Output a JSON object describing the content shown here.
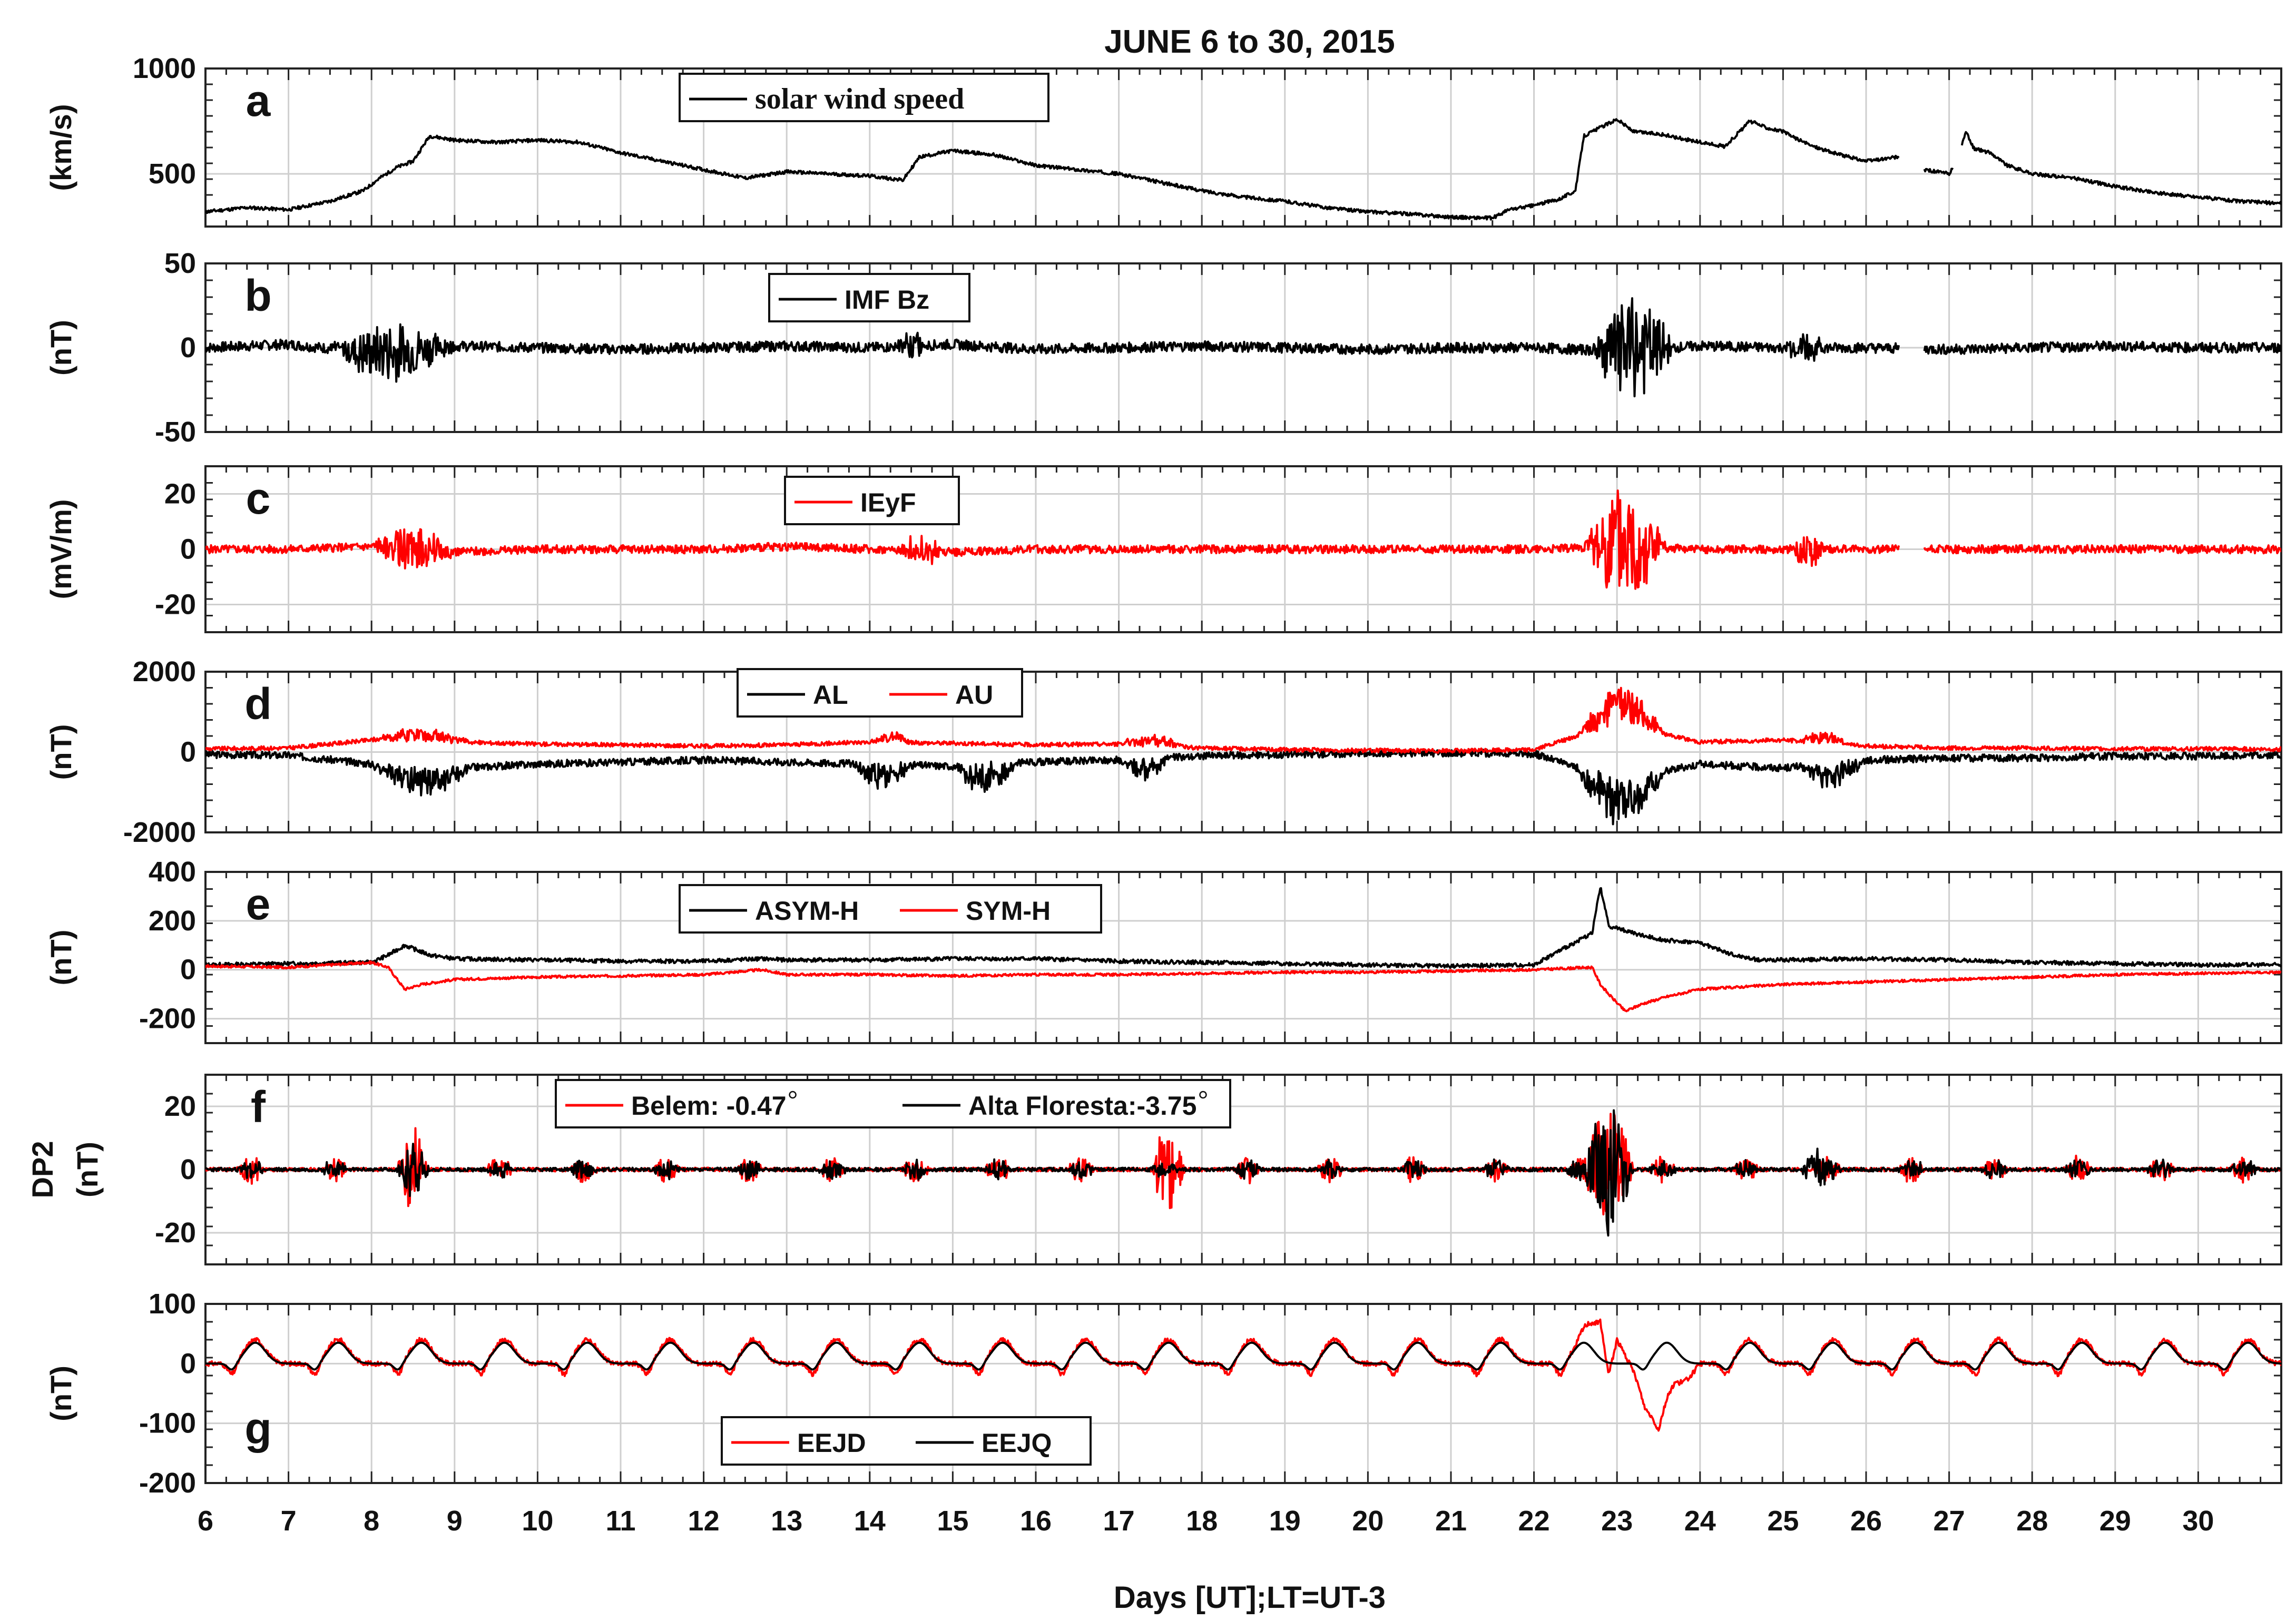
{
  "figure": {
    "title": "JUNE 6 to 30, 2015",
    "xlabel": "Days [UT];LT=UT-3"
  },
  "colors": {
    "black": "#000000",
    "red": "#ff0000",
    "grid": "#cfcfcf",
    "frame": "#222222"
  },
  "chart_data": [
    {
      "panel": "a",
      "type": "line",
      "ylabel": "(km/s)",
      "x_range": [
        6,
        31
      ],
      "x_ticks": [
        6,
        7,
        8,
        9,
        10,
        11,
        12,
        13,
        14,
        15,
        16,
        17,
        18,
        19,
        20,
        21,
        22,
        23,
        24,
        25,
        26,
        27,
        28,
        29,
        30
      ],
      "ylim": [
        250,
        1000
      ],
      "y_ticks": [
        500,
        1000
      ],
      "legend": [
        "solar wind speed"
      ],
      "legend_font": "serif",
      "series": [
        {
          "name": "solar wind speed",
          "color": "#000000",
          "noise": 8,
          "seed": 11,
          "gaps": [
            [
              26.4,
              26.7
            ],
            [
              27.05,
              27.15
            ]
          ],
          "x": [
            6,
            6.5,
            7,
            7.5,
            7.9,
            8.1,
            8.3,
            8.5,
            8.7,
            9,
            9.5,
            10,
            10.5,
            11,
            11.5,
            12,
            12.5,
            13,
            13.5,
            14,
            14.4,
            14.6,
            15,
            15.5,
            16,
            16.5,
            17,
            17.5,
            18,
            18.5,
            19,
            19.5,
            20,
            20.5,
            21,
            21.5,
            21.7,
            22,
            22.3,
            22.5,
            22.6,
            22.8,
            23,
            23.2,
            23.5,
            24,
            24.3,
            24.6,
            24.8,
            25,
            25.3,
            25.6,
            26,
            26.4,
            26.7,
            27,
            27.1,
            27.2,
            27.3,
            27.5,
            27.7,
            28,
            28.5,
            29,
            29.5,
            30,
            30.5,
            31
          ],
          "y": [
            320,
            340,
            330,
            370,
            420,
            480,
            530,
            560,
            680,
            660,
            650,
            660,
            650,
            600,
            560,
            520,
            480,
            510,
            500,
            490,
            470,
            580,
            610,
            590,
            540,
            520,
            500,
            460,
            420,
            390,
            370,
            340,
            320,
            310,
            295,
            290,
            330,
            350,
            380,
            420,
            680,
            720,
            760,
            700,
            690,
            650,
            630,
            750,
            720,
            700,
            640,
            600,
            560,
            580,
            520,
            500,
            560,
            700,
            620,
            600,
            540,
            500,
            480,
            440,
            410,
            390,
            370,
            360
          ]
        }
      ]
    },
    {
      "panel": "b",
      "type": "line",
      "ylabel": "(nT)",
      "x_range": [
        6,
        31
      ],
      "ylim": [
        -50,
        50
      ],
      "y_ticks": [
        -50,
        0,
        50
      ],
      "legend": [
        "IMF Bz"
      ],
      "series": [
        {
          "name": "IMF Bz",
          "color": "#000000",
          "noise": 3,
          "seed": 7,
          "gaps": [
            [
              26.4,
              26.7
            ]
          ],
          "bursts": [
            {
              "x": [
                7.5,
                9.0
              ],
              "amp": 16,
              "freq": 9
            },
            {
              "x": [
                22.7,
                23.7
              ],
              "amp": 30,
              "freq": 10
            },
            {
              "x": [
                14.3,
                14.7
              ],
              "amp": 8,
              "freq": 8
            },
            {
              "x": [
                25.0,
                25.5
              ],
              "amp": 9,
              "freq": 8
            }
          ],
          "x": [
            6,
            7,
            8,
            9,
            10,
            11,
            12,
            13,
            14,
            15,
            16,
            17,
            18,
            19,
            20,
            21,
            22,
            23,
            24,
            25,
            26,
            27,
            28,
            29,
            30,
            31
          ],
          "y": [
            0,
            2,
            -3,
            1,
            0,
            -1,
            0,
            1,
            0,
            2,
            -1,
            0,
            1,
            0,
            -1,
            0,
            0,
            -2,
            1,
            0,
            0,
            -1,
            0,
            1,
            0,
            0
          ]
        }
      ]
    },
    {
      "panel": "c",
      "type": "line",
      "ylabel": "(mV/m)",
      "x_range": [
        6,
        31
      ],
      "ylim": [
        -30,
        30
      ],
      "y_ticks": [
        -20,
        0,
        20
      ],
      "legend": [
        "IEyF"
      ],
      "series": [
        {
          "name": "IEyF",
          "color": "#ff0000",
          "noise": 1.5,
          "seed": 5,
          "gaps": [
            [
              26.4,
              26.7
            ]
          ],
          "bursts": [
            {
              "x": [
                8.0,
                9.0
              ],
              "amp": 7,
              "freq": 9
            },
            {
              "x": [
                22.6,
                23.6
              ],
              "amp": 22,
              "freq": 10
            },
            {
              "x": [
                14.3,
                14.9
              ],
              "amp": 5,
              "freq": 8
            },
            {
              "x": [
                25.1,
                25.5
              ],
              "amp": 7,
              "freq": 8
            }
          ],
          "x": [
            6,
            7,
            8,
            9,
            10,
            11,
            12,
            13,
            14,
            15,
            16,
            17,
            18,
            19,
            20,
            21,
            22,
            23,
            24,
            25,
            26,
            27,
            28,
            29,
            30,
            31
          ],
          "y": [
            0,
            0,
            1,
            -1,
            0,
            0,
            0,
            1,
            0,
            -1,
            0,
            0,
            0,
            0,
            0,
            0,
            0,
            1,
            0,
            0,
            0,
            0,
            0,
            0,
            0,
            0
          ]
        }
      ]
    },
    {
      "panel": "d",
      "type": "line",
      "ylabel": "(nT)",
      "x_range": [
        6,
        31
      ],
      "ylim": [
        -2000,
        2000
      ],
      "y_ticks": [
        -2000,
        0,
        2000
      ],
      "legend": [
        "AL",
        "AU"
      ],
      "series": [
        {
          "name": "AL",
          "color": "#000000",
          "noise": 90,
          "seed": 3,
          "neg": true,
          "bursts": [
            {
              "x": [
                8.0,
                9.2
              ],
              "amp": 700,
              "freq": 10
            },
            {
              "x": [
                22.5,
                23.6
              ],
              "amp": 1200,
              "freq": 11
            },
            {
              "x": [
                13.8,
                14.5
              ],
              "amp": 600,
              "freq": 9
            },
            {
              "x": [
                15.0,
                15.8
              ],
              "amp": 700,
              "freq": 9
            },
            {
              "x": [
                25.2,
                26.0
              ],
              "amp": 600,
              "freq": 9
            },
            {
              "x": [
                17.0,
                17.6
              ],
              "amp": 500,
              "freq": 8
            }
          ],
          "x": [
            6,
            7,
            8,
            9,
            10,
            11,
            12,
            13,
            14,
            15,
            16,
            17,
            18,
            19,
            20,
            21,
            22,
            23,
            24,
            25,
            26,
            27,
            28,
            29,
            30,
            31
          ],
          "y": [
            -60,
            -80,
            -300,
            -400,
            -300,
            -250,
            -200,
            -250,
            -300,
            -350,
            -250,
            -200,
            -100,
            -60,
            -30,
            -20,
            -40,
            -700,
            -300,
            -400,
            -200,
            -150,
            -150,
            -100,
            -100,
            -80
          ]
        },
        {
          "name": "AU",
          "color": "#ff0000",
          "noise": 50,
          "seed": 9,
          "pos": true,
          "bursts": [
            {
              "x": [
                8.0,
                9.2
              ],
              "amp": 300,
              "freq": 8
            },
            {
              "x": [
                22.5,
                23.6
              ],
              "amp": 900,
              "freq": 11
            },
            {
              "x": [
                14.0,
                14.5
              ],
              "amp": 250,
              "freq": 8
            },
            {
              "x": [
                17.0,
                17.8
              ],
              "amp": 250,
              "freq": 8
            },
            {
              "x": [
                25.2,
                25.8
              ],
              "amp": 300,
              "freq": 8
            }
          ],
          "x": [
            6,
            7,
            8,
            9,
            10,
            11,
            12,
            13,
            14,
            15,
            16,
            17,
            18,
            19,
            20,
            21,
            22,
            23,
            24,
            25,
            26,
            27,
            28,
            29,
            30,
            31
          ],
          "y": [
            80,
            100,
            300,
            250,
            200,
            180,
            150,
            180,
            250,
            220,
            180,
            200,
            100,
            60,
            40,
            30,
            60,
            700,
            250,
            300,
            150,
            100,
            100,
            80,
            80,
            70
          ]
        }
      ]
    },
    {
      "panel": "e",
      "type": "line",
      "ylabel": "(nT)",
      "x_range": [
        6,
        31
      ],
      "ylim": [
        -300,
        400
      ],
      "y_ticks": [
        -200,
        0,
        200,
        400
      ],
      "legend": [
        "ASYM-H",
        "SYM-H"
      ],
      "series": [
        {
          "name": "ASYM-H",
          "color": "#000000",
          "noise": 8,
          "seed": 13,
          "x": [
            6,
            7,
            8,
            8.2,
            8.4,
            8.7,
            9,
            10,
            11,
            12,
            12.7,
            13,
            14,
            15,
            16,
            17,
            18,
            19,
            20,
            21,
            22,
            22.7,
            22.8,
            22.9,
            23,
            23.3,
            23.6,
            24,
            24.4,
            24.7,
            25,
            26,
            27,
            28,
            29,
            30,
            31
          ],
          "y": [
            20,
            25,
            30,
            60,
            100,
            60,
            45,
            40,
            35,
            35,
            45,
            40,
            40,
            45,
            45,
            35,
            30,
            25,
            20,
            15,
            20,
            150,
            340,
            180,
            170,
            140,
            120,
            110,
            60,
            40,
            40,
            45,
            40,
            30,
            25,
            20,
            20
          ]
        },
        {
          "name": "SYM-H",
          "color": "#ff0000",
          "noise": 5,
          "seed": 17,
          "x": [
            6,
            7,
            7.5,
            8,
            8.2,
            8.4,
            8.6,
            9,
            10,
            11,
            12,
            12.7,
            13,
            14,
            15,
            16,
            17,
            18,
            19,
            20,
            21,
            22,
            22.7,
            22.8,
            22.9,
            23.1,
            23.3,
            23.6,
            24,
            24.5,
            25,
            26,
            27,
            28,
            29,
            30,
            31
          ],
          "y": [
            15,
            10,
            20,
            30,
            10,
            -80,
            -60,
            -40,
            -30,
            -25,
            -20,
            0,
            -20,
            -20,
            -25,
            -20,
            -20,
            -15,
            -10,
            -10,
            -5,
            0,
            10,
            -60,
            -100,
            -170,
            -140,
            -110,
            -80,
            -70,
            -60,
            -50,
            -40,
            -30,
            -20,
            -15,
            -10
          ]
        }
      ]
    },
    {
      "panel": "f",
      "type": "line",
      "ylabel": "(nT)",
      "ylabel2": "DP2",
      "x_range": [
        6,
        31
      ],
      "ylim": [
        -30,
        30
      ],
      "y_ticks": [
        -20,
        0,
        20
      ],
      "legend": [
        "Belem: -0.47",
        "Alta Floresta:-3.75"
      ],
      "legend_degree": true,
      "series": [
        {
          "name": "Belem: -0.47",
          "color": "#ff0000",
          "noise": 0.6,
          "seed": 21,
          "daily_burst": {
            "center": 0.55,
            "width": 0.35,
            "amp": 4
          },
          "bursts": [
            {
              "x": [
                8.3,
                8.7
              ],
              "amp": 12,
              "freq": 10
            },
            {
              "x": [
                17.4,
                17.8
              ],
              "amp": 12,
              "freq": 10
            },
            {
              "x": [
                22.6,
                23.2
              ],
              "amp": 20,
              "freq": 12
            }
          ],
          "x": [
            6,
            31
          ],
          "y": [
            0,
            0
          ]
        },
        {
          "name": "Alta Floresta:-3.75",
          "color": "#000000",
          "noise": 0.6,
          "seed": 23,
          "daily_burst": {
            "center": 0.55,
            "width": 0.35,
            "amp": 3
          },
          "bursts": [
            {
              "x": [
                8.3,
                8.7
              ],
              "amp": 8,
              "freq": 10
            },
            {
              "x": [
                22.6,
                23.2
              ],
              "amp": 22,
              "freq": 12
            },
            {
              "x": [
                25.2,
                25.6
              ],
              "amp": 6,
              "freq": 10
            }
          ],
          "x": [
            6,
            31
          ],
          "y": [
            0,
            0
          ]
        }
      ]
    },
    {
      "panel": "g",
      "type": "line",
      "ylabel": "(nT)",
      "x_range": [
        6,
        31
      ],
      "ylim": [
        -200,
        100
      ],
      "y_ticks": [
        -200,
        -100,
        0,
        100
      ],
      "legend": [
        "EEJD",
        "EEJQ"
      ],
      "legend_pos": "bottom",
      "series": [
        {
          "name": "EEJD",
          "color": "#ff0000",
          "noise": 4,
          "seed": 31,
          "daily_wave": {
            "amp": 40,
            "peak": 0.6,
            "width": 0.12,
            "trough": -20
          },
          "x": [
            6,
            22.5,
            22.8,
            22.9,
            23,
            23.3,
            23.5,
            23.7,
            24,
            31
          ],
          "y": [
            0,
            0,
            60,
            -20,
            40,
            -40,
            -140,
            -60,
            0,
            0
          ]
        },
        {
          "name": "EEJQ",
          "color": "#000000",
          "noise": 0,
          "seed": 33,
          "daily_wave": {
            "amp": 35,
            "peak": 0.6,
            "width": 0.12,
            "trough": -12
          },
          "x": [
            6,
            31
          ],
          "y": [
            0,
            0
          ]
        }
      ]
    }
  ]
}
